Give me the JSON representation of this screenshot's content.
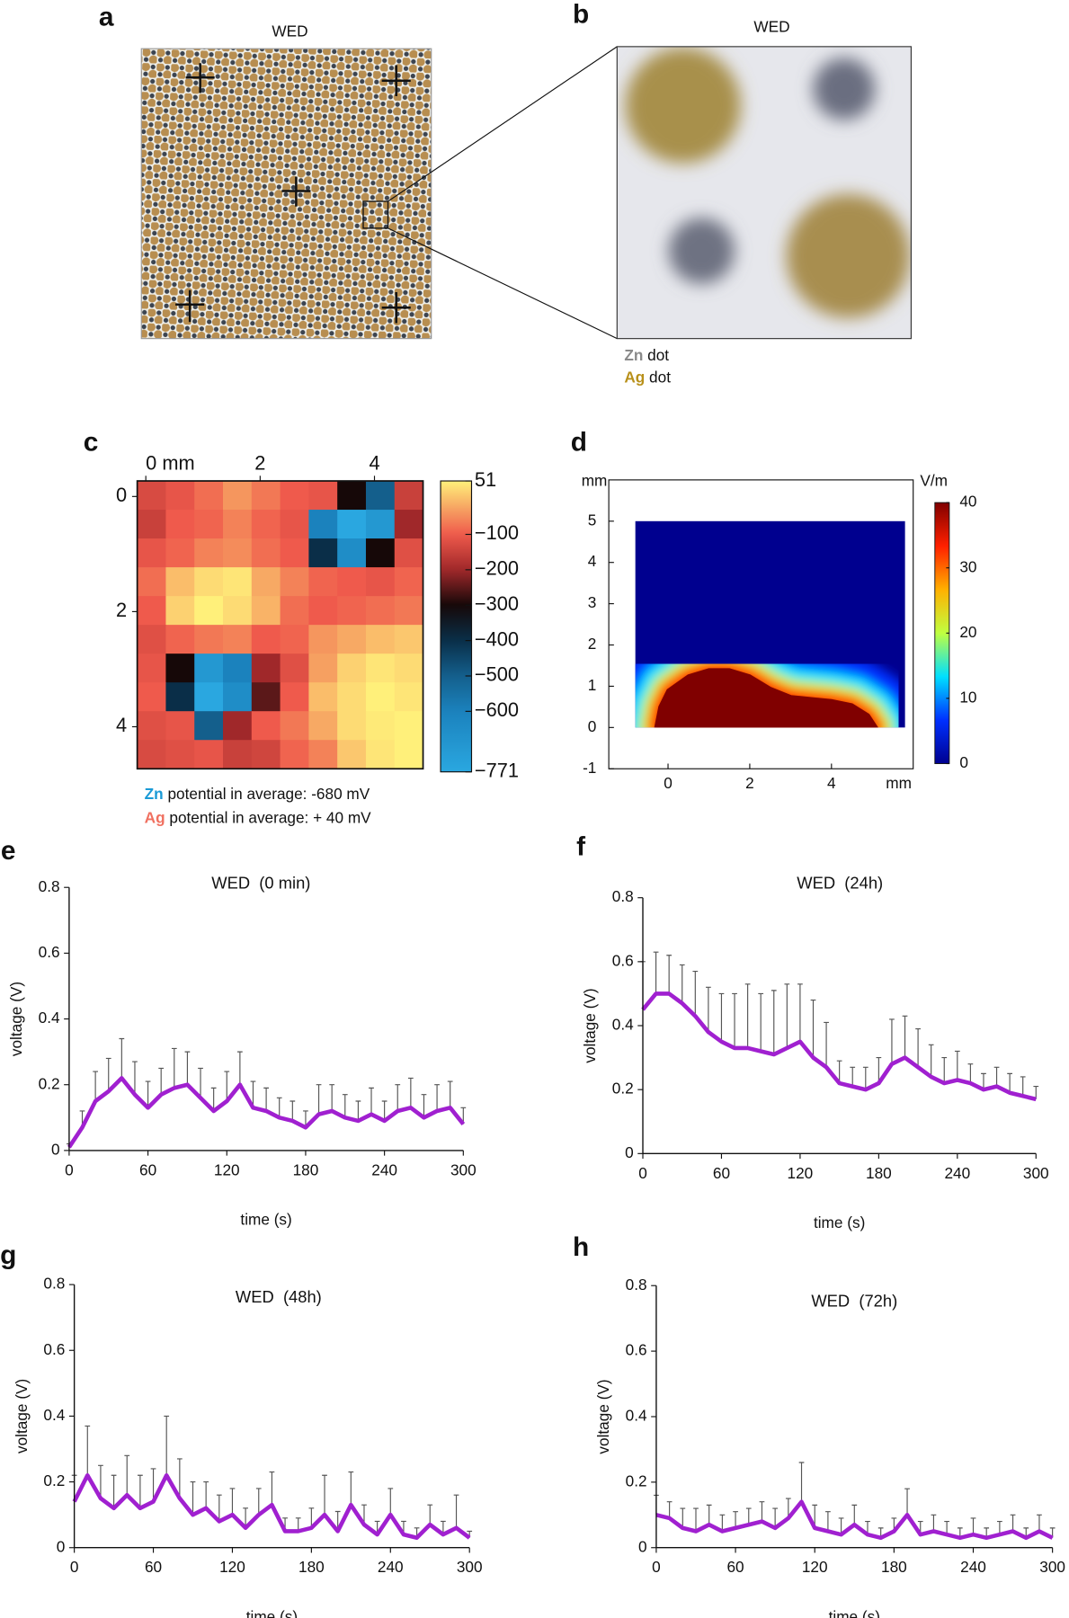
{
  "photos": [
    {
      "panel": "a",
      "title": "WED"
    },
    {
      "panel": "b",
      "title": "WED",
      "legend": [
        {
          "element": "Zn",
          "text": " dot",
          "color": "#8a8a8a"
        },
        {
          "element": "Ag",
          "text": " dot",
          "color": "#b8901a"
        }
      ]
    }
  ],
  "chart_data": [
    {
      "panel": "c",
      "type": "heatmap",
      "xlim": [
        -0.15,
        4.85
      ],
      "ylim": [
        -0.27,
        4.73
      ],
      "xticks": [
        {
          "value": 0,
          "label": "0 mm"
        },
        2,
        4
      ],
      "yticks": [
        0,
        2,
        4
      ],
      "values": [
        [
          -130,
          -110,
          -80,
          -40,
          -70,
          -100,
          -110,
          -300,
          -500,
          -150
        ],
        [
          -150,
          -100,
          -90,
          -60,
          -90,
          -110,
          -600,
          -771,
          -700,
          -200
        ],
        [
          -110,
          -90,
          -60,
          -50,
          -80,
          -100,
          -400,
          -650,
          -300,
          -120
        ],
        [
          -80,
          0,
          30,
          40,
          -20,
          -60,
          -90,
          -100,
          -110,
          -90
        ],
        [
          -100,
          20,
          51,
          30,
          -10,
          -80,
          -100,
          -90,
          -80,
          -70
        ],
        [
          -120,
          -90,
          -70,
          -60,
          -100,
          -90,
          -40,
          -20,
          0,
          10
        ],
        [
          -110,
          -300,
          -700,
          -600,
          -200,
          -120,
          -30,
          20,
          40,
          30
        ],
        [
          -100,
          -400,
          -771,
          -650,
          -250,
          -100,
          0,
          30,
          51,
          40
        ],
        [
          -120,
          -110,
          -500,
          -200,
          -100,
          -70,
          -20,
          30,
          45,
          51
        ],
        [
          -130,
          -120,
          -110,
          -150,
          -140,
          -90,
          -60,
          10,
          40,
          51
        ]
      ],
      "clim": [
        -771,
        51
      ],
      "cticks": [
        51,
        {
          "value": -100,
          "label": "−100"
        },
        {
          "value": -200,
          "label": "−200"
        },
        {
          "value": -300,
          "label": "−300"
        },
        {
          "value": -400,
          "label": "−400"
        },
        {
          "value": -500,
          "label": "−500"
        },
        {
          "value": -600,
          "label": "−600"
        },
        {
          "value": -771,
          "label": "−771"
        }
      ],
      "colormap": [
        "#fff07a",
        "#ef5a4c",
        "#a0282a",
        "#160808",
        "#0a2e48",
        "#145f8c",
        "#1b82bd",
        "#2aa7e0"
      ],
      "notes": [
        {
          "element": "Zn",
          "text": " potential in average: -680 mV",
          "color": "#1a9ad6"
        },
        {
          "element": "Ag",
          "text": " potential in average: + 40 mV",
          "color": "#f07060"
        }
      ]
    },
    {
      "panel": "d",
      "type": "field",
      "x_label": "mm",
      "y_label": "mm",
      "colorbar_label": "V/m",
      "xlim": [
        -1.45,
        6
      ],
      "ylim": [
        -1,
        6
      ],
      "xticks": [
        0,
        2,
        4
      ],
      "yticks": [
        -1,
        0,
        1,
        2,
        3,
        4,
        5
      ],
      "domain_x": [
        -0.8,
        5.8
      ],
      "domain_y": [
        0,
        5
      ],
      "x": [
        -0.3,
        -0.2,
        0,
        0.5,
        1,
        1.5,
        2,
        2.5,
        3,
        3.5,
        4,
        4.5,
        4.9,
        5.1
      ],
      "values": [
        0,
        0.5,
        0.9,
        1.25,
        1.4,
        1.4,
        1.25,
        0.95,
        0.75,
        0.7,
        0.65,
        0.55,
        0.3,
        0
      ],
      "clim": [
        0,
        40
      ],
      "cticks": [
        0,
        10,
        20,
        30,
        40
      ],
      "colormap": [
        "#00008f",
        "#0030ff",
        "#00e0ff",
        "#c0ff40",
        "#ffb000",
        "#ff2000",
        "#800000"
      ]
    },
    {
      "panel": "e",
      "type": "line",
      "title": "WED  (0 min)",
      "x_label": "time (s)",
      "y_label": "voltage (V)",
      "xlim": [
        0,
        300
      ],
      "xticks": [
        0,
        60,
        120,
        180,
        240,
        300
      ],
      "ylim": [
        0,
        0.8
      ],
      "yticks": [
        0,
        0.2,
        0.4,
        0.6,
        0.8
      ],
      "error_color": "#555555",
      "x": [
        0,
        10,
        20,
        30,
        40,
        50,
        60,
        70,
        80,
        90,
        100,
        110,
        120,
        130,
        140,
        150,
        160,
        170,
        180,
        190,
        200,
        210,
        220,
        230,
        240,
        250,
        260,
        270,
        280,
        290,
        300
      ],
      "series": [
        {
          "color": "#a020d0",
          "values": [
            0.01,
            0.07,
            0.15,
            0.18,
            0.22,
            0.17,
            0.13,
            0.17,
            0.19,
            0.2,
            0.16,
            0.12,
            0.15,
            0.2,
            0.13,
            0.12,
            0.1,
            0.09,
            0.07,
            0.11,
            0.12,
            0.1,
            0.09,
            0.11,
            0.09,
            0.12,
            0.13,
            0.1,
            0.12,
            0.13,
            0.08
          ],
          "errors": [
            0.01,
            0.05,
            0.09,
            0.1,
            0.12,
            0.1,
            0.08,
            0.08,
            0.12,
            0.1,
            0.09,
            0.07,
            0.09,
            0.1,
            0.08,
            0.07,
            0.06,
            0.06,
            0.05,
            0.09,
            0.08,
            0.07,
            0.06,
            0.08,
            0.06,
            0.08,
            0.09,
            0.07,
            0.08,
            0.08,
            0.05
          ]
        }
      ]
    },
    {
      "panel": "f",
      "type": "line",
      "title": "WED  (24h)",
      "x_label": "time (s)",
      "y_label": "voltage (V)",
      "xlim": [
        0,
        300
      ],
      "xticks": [
        0,
        60,
        120,
        180,
        240,
        300
      ],
      "ylim": [
        0,
        0.8
      ],
      "yticks": [
        0,
        0.2,
        0.4,
        0.6,
        0.8
      ],
      "error_color": "#555555",
      "x": [
        0,
        10,
        20,
        30,
        40,
        50,
        60,
        70,
        80,
        90,
        100,
        110,
        120,
        130,
        140,
        150,
        160,
        170,
        180,
        190,
        200,
        210,
        220,
        230,
        240,
        250,
        260,
        270,
        280,
        290,
        300
      ],
      "series": [
        {
          "color": "#a020d0",
          "values": [
            0.45,
            0.5,
            0.5,
            0.47,
            0.43,
            0.38,
            0.35,
            0.33,
            0.33,
            0.32,
            0.31,
            0.33,
            0.35,
            0.3,
            0.27,
            0.22,
            0.21,
            0.2,
            0.22,
            0.28,
            0.3,
            0.27,
            0.24,
            0.22,
            0.23,
            0.22,
            0.2,
            0.21,
            0.19,
            0.18,
            0.17
          ],
          "errors": [
            0.15,
            0.13,
            0.12,
            0.12,
            0.14,
            0.14,
            0.15,
            0.17,
            0.2,
            0.18,
            0.2,
            0.2,
            0.18,
            0.18,
            0.14,
            0.07,
            0.06,
            0.07,
            0.08,
            0.14,
            0.13,
            0.12,
            0.1,
            0.08,
            0.09,
            0.06,
            0.05,
            0.06,
            0.06,
            0.06,
            0.04
          ]
        }
      ]
    },
    {
      "panel": "g",
      "type": "line",
      "title": "WED  (48h)",
      "x_label": "time (s)",
      "y_label": "voltage (V)",
      "xlim": [
        0,
        300
      ],
      "xticks": [
        0,
        60,
        120,
        180,
        240,
        300
      ],
      "ylim": [
        0,
        0.8
      ],
      "yticks": [
        0,
        0.2,
        0.4,
        0.6,
        0.8
      ],
      "error_color": "#555555",
      "x": [
        0,
        10,
        20,
        30,
        40,
        50,
        60,
        70,
        80,
        90,
        100,
        110,
        120,
        130,
        140,
        150,
        160,
        170,
        180,
        190,
        200,
        210,
        220,
        230,
        240,
        250,
        260,
        270,
        280,
        290,
        300
      ],
      "series": [
        {
          "color": "#a020d0",
          "values": [
            0.14,
            0.22,
            0.15,
            0.12,
            0.16,
            0.12,
            0.14,
            0.22,
            0.15,
            0.1,
            0.12,
            0.08,
            0.1,
            0.06,
            0.1,
            0.13,
            0.05,
            0.05,
            0.06,
            0.1,
            0.05,
            0.13,
            0.07,
            0.04,
            0.1,
            0.04,
            0.03,
            0.07,
            0.04,
            0.06,
            0.03
          ],
          "errors": [
            0.08,
            0.15,
            0.1,
            0.1,
            0.12,
            0.1,
            0.1,
            0.18,
            0.12,
            0.1,
            0.08,
            0.08,
            0.08,
            0.06,
            0.08,
            0.1,
            0.04,
            0.04,
            0.06,
            0.12,
            0.06,
            0.1,
            0.06,
            0.04,
            0.08,
            0.04,
            0.03,
            0.06,
            0.04,
            0.1,
            0.02
          ]
        }
      ]
    },
    {
      "panel": "h",
      "type": "line",
      "title": "WED  (72h)",
      "x_label": "time (s)",
      "y_label": "voltage (V)",
      "xlim": [
        0,
        300
      ],
      "xticks": [
        0,
        60,
        120,
        180,
        240,
        300
      ],
      "ylim": [
        0,
        0.8
      ],
      "yticks": [
        0,
        0.2,
        0.4,
        0.6,
        0.8
      ],
      "error_color": "#555555",
      "x": [
        0,
        10,
        20,
        30,
        40,
        50,
        60,
        70,
        80,
        90,
        100,
        110,
        120,
        130,
        140,
        150,
        160,
        170,
        180,
        190,
        200,
        210,
        220,
        230,
        240,
        250,
        260,
        270,
        280,
        290,
        300
      ],
      "series": [
        {
          "color": "#a020d0",
          "values": [
            0.1,
            0.09,
            0.06,
            0.05,
            0.07,
            0.05,
            0.06,
            0.07,
            0.08,
            0.06,
            0.09,
            0.14,
            0.06,
            0.05,
            0.04,
            0.07,
            0.04,
            0.03,
            0.05,
            0.1,
            0.04,
            0.05,
            0.04,
            0.03,
            0.04,
            0.03,
            0.04,
            0.05,
            0.03,
            0.05,
            0.03
          ],
          "errors": [
            0.06,
            0.05,
            0.06,
            0.07,
            0.06,
            0.05,
            0.05,
            0.05,
            0.06,
            0.06,
            0.06,
            0.12,
            0.07,
            0.06,
            0.05,
            0.06,
            0.04,
            0.03,
            0.04,
            0.08,
            0.04,
            0.05,
            0.04,
            0.03,
            0.05,
            0.03,
            0.04,
            0.05,
            0.03,
            0.05,
            0.03
          ]
        }
      ]
    }
  ]
}
